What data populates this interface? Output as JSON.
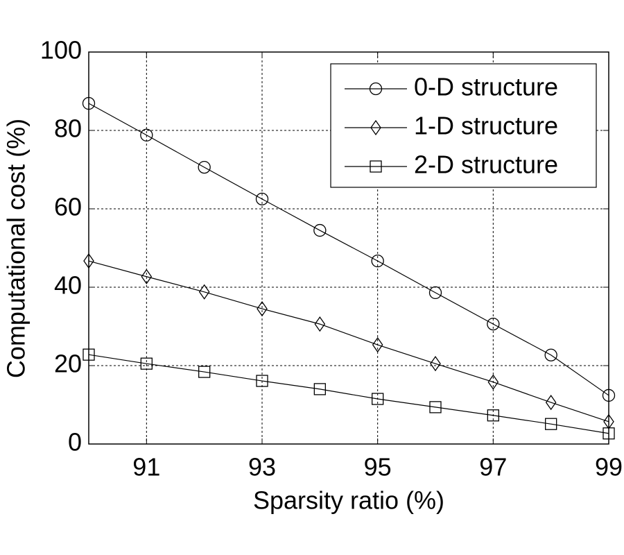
{
  "chart_data": {
    "type": "line",
    "xlabel": "Sparsity ratio (%)",
    "ylabel": "Computational cost (%)",
    "x": [
      90,
      91,
      92,
      93,
      94,
      95,
      96,
      97,
      98,
      99
    ],
    "series": [
      {
        "name": "0-D structure",
        "color": "#000000",
        "marker": "circle",
        "values": [
          86.9,
          78.8,
          70.6,
          62.5,
          54.5,
          46.7,
          38.6,
          30.6,
          22.7,
          12.4
        ]
      },
      {
        "name": "1-D structure",
        "color": "#000000",
        "marker": "diamond",
        "values": [
          46.7,
          42.7,
          38.8,
          34.5,
          30.6,
          25.3,
          20.5,
          15.8,
          10.6,
          5.7
        ]
      },
      {
        "name": "2-D structure",
        "color": "#000000",
        "marker": "square",
        "values": [
          22.8,
          20.5,
          18.4,
          16.1,
          14.0,
          11.5,
          9.4,
          7.3,
          5.1,
          2.7
        ]
      }
    ],
    "xlim": [
      90,
      99
    ],
    "xticks": [
      91,
      93,
      95,
      97,
      99
    ],
    "ylim": [
      0,
      100
    ],
    "yticks": [
      0,
      20,
      40,
      60,
      80,
      100
    ],
    "grid": true,
    "legend": "upper right"
  }
}
